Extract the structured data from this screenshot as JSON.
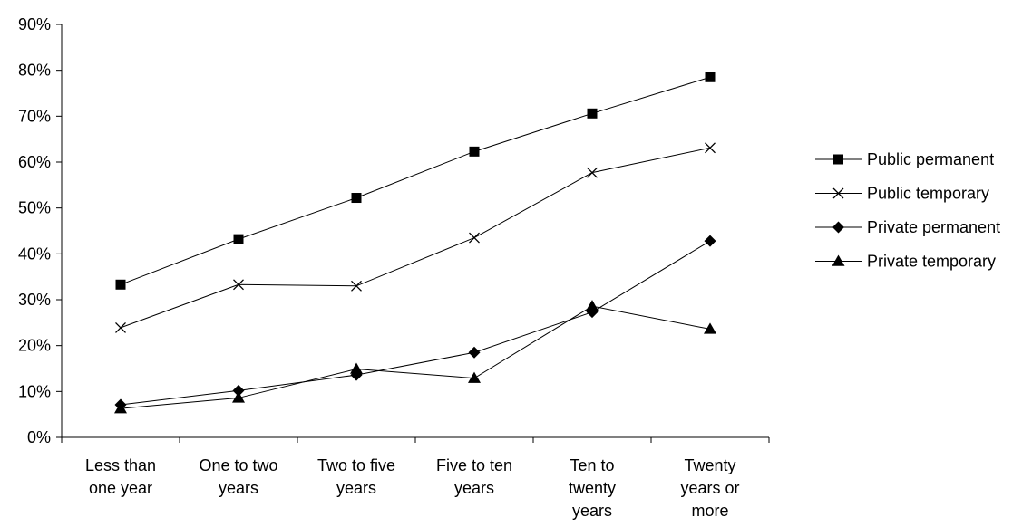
{
  "chart_data": {
    "type": "line",
    "title": "",
    "xlabel": "",
    "ylabel": "",
    "categories": [
      [
        "Less than",
        "one year"
      ],
      [
        "One to two",
        "years"
      ],
      [
        "Two to five",
        "years"
      ],
      [
        "Five to ten",
        "years"
      ],
      [
        "Ten to",
        "twenty",
        "years"
      ],
      [
        "Twenty",
        "years or",
        "more"
      ]
    ],
    "y_ticks": [
      "0%",
      "10%",
      "20%",
      "30%",
      "40%",
      "50%",
      "60%",
      "70%",
      "80%",
      "90%"
    ],
    "ylim": [
      0,
      90
    ],
    "y_unit": "%",
    "grid": false,
    "legend_position": "right",
    "series": [
      {
        "name": "Public permanent",
        "marker": "square",
        "values": [
          33.3,
          43.2,
          52.2,
          62.3,
          70.6,
          78.5
        ]
      },
      {
        "name": "Public temporary",
        "marker": "x",
        "values": [
          23.9,
          33.3,
          33.0,
          43.5,
          57.7,
          63.1
        ]
      },
      {
        "name": "Private permanent",
        "marker": "diamond",
        "values": [
          7.1,
          10.2,
          13.6,
          18.5,
          27.3,
          42.8
        ]
      },
      {
        "name": "Private temporary",
        "marker": "triangle",
        "values": [
          6.3,
          8.6,
          14.9,
          12.9,
          28.6,
          23.6
        ]
      }
    ],
    "colors": {
      "line": "#000000",
      "axis": "#000000",
      "background": "#ffffff"
    }
  }
}
